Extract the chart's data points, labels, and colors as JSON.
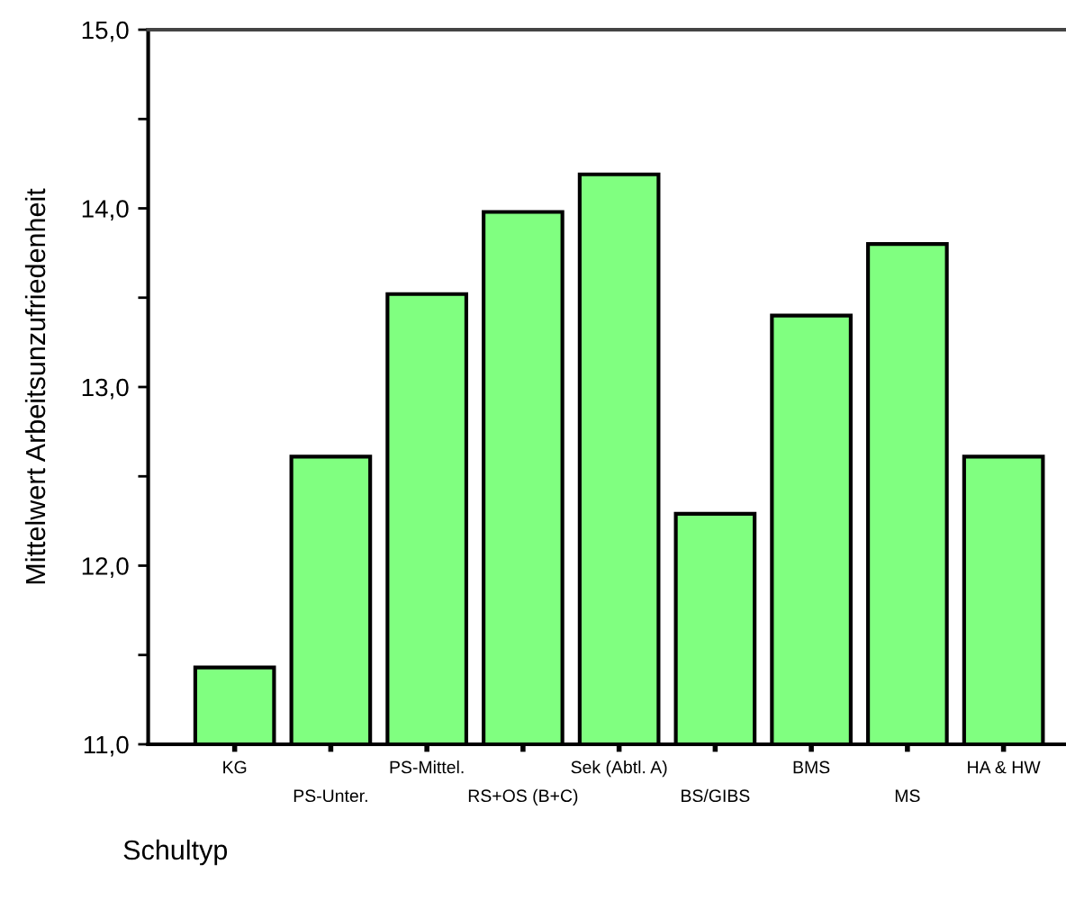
{
  "chart_data": {
    "type": "bar",
    "xlabel": "Schultyp",
    "ylabel": "Mittelwert Arbeitsunzufriedenheit",
    "categories": [
      "KG",
      "PS-Unter.",
      "PS-Mittel.",
      "RS+OS (B+C)",
      "Sek (Abtl. A)",
      "BS/GIBS",
      "BMS",
      "MS",
      "HA & HW"
    ],
    "values": [
      11.43,
      12.61,
      13.52,
      13.98,
      14.19,
      12.29,
      13.4,
      13.8,
      12.61
    ],
    "color": "#80ff80",
    "ylim": [
      11,
      15
    ],
    "yticks": [
      {
        "value": 11,
        "label": "11,0"
      },
      {
        "value": 11.5,
        "label": null
      },
      {
        "value": 12,
        "label": "12,0"
      },
      {
        "value": 12.5,
        "label": null
      },
      {
        "value": 13,
        "label": "13,0"
      },
      {
        "value": 13.5,
        "label": null
      },
      {
        "value": 14,
        "label": "14,0"
      },
      {
        "value": 14.5,
        "label": null
      },
      {
        "value": 15,
        "label": "15,0"
      }
    ],
    "grid": false
  }
}
